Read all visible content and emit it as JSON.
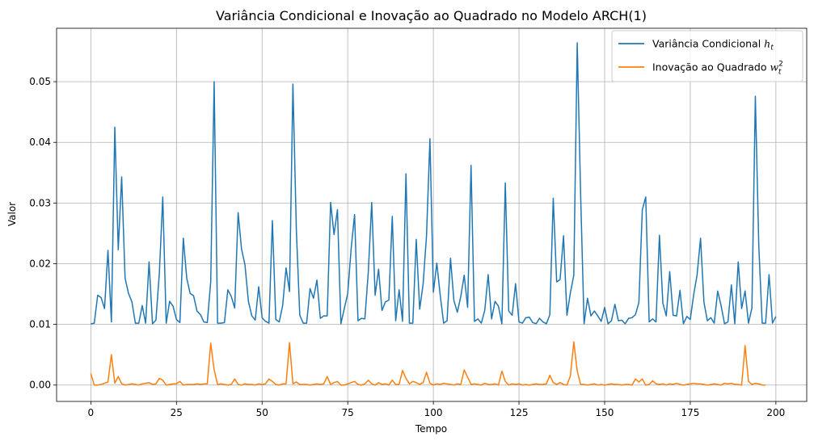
{
  "chart_data": {
    "type": "line",
    "title": "Variância Condicional e Inovação ao Quadrado no Modelo ARCH(1)",
    "xlabel": "Tempo",
    "ylabel": "Valor",
    "xlim": [
      -10,
      209
    ],
    "ylim": [
      -0.0027,
      0.0588
    ],
    "xticks": [
      0,
      25,
      50,
      75,
      100,
      125,
      150,
      175,
      200
    ],
    "xtick_labels": [
      "0",
      "25",
      "50",
      "75",
      "100",
      "125",
      "150",
      "175",
      "200"
    ],
    "yticks": [
      0.0,
      0.01,
      0.02,
      0.03,
      0.04,
      0.05
    ],
    "ytick_labels": [
      "0.00",
      "0.01",
      "0.02",
      "0.03",
      "0.04",
      "0.05"
    ],
    "grid": true,
    "legend_position": "top-right",
    "legend": [
      {
        "series": 0,
        "text": "Variância Condicional ",
        "math": "h",
        "sub": "t"
      },
      {
        "series": 1,
        "text": "Inovação ao Quadrado ",
        "math": "w",
        "sub": "t",
        "sup": "2"
      }
    ],
    "colors": {
      "h": "#1f77b4",
      "w2": "#ff7f0e"
    },
    "series": [
      {
        "name": "Variância Condicional h_t",
        "color": "#1f77b4",
        "values": [
          0.0101,
          0.0102,
          0.0148,
          0.0144,
          0.0126,
          0.0222,
          0.0104,
          0.0425,
          0.0223,
          0.0343,
          0.0176,
          0.0151,
          0.0137,
          0.0102,
          0.0102,
          0.0131,
          0.0102,
          0.0203,
          0.0101,
          0.0107,
          0.0184,
          0.031,
          0.0102,
          0.0138,
          0.013,
          0.0108,
          0.0103,
          0.0242,
          0.0176,
          0.0151,
          0.0147,
          0.0122,
          0.0116,
          0.0104,
          0.0103,
          0.017,
          0.05,
          0.0102,
          0.0102,
          0.0103,
          0.0157,
          0.0146,
          0.0127,
          0.0284,
          0.0224,
          0.0198,
          0.0138,
          0.0114,
          0.0107,
          0.0162,
          0.0111,
          0.0105,
          0.0102,
          0.0271,
          0.0108,
          0.0104,
          0.0131,
          0.0193,
          0.0154,
          0.0496,
          0.0255,
          0.0115,
          0.0102,
          0.0102,
          0.0159,
          0.0143,
          0.0173,
          0.011,
          0.0114,
          0.0114,
          0.0301,
          0.0248,
          0.0289,
          0.0101,
          0.0126,
          0.0151,
          0.0225,
          0.0281,
          0.0106,
          0.011,
          0.0109,
          0.0186,
          0.0301,
          0.0148,
          0.0191,
          0.0123,
          0.0137,
          0.014,
          0.0278,
          0.0106,
          0.0157,
          0.0105,
          0.0348,
          0.0102,
          0.0102,
          0.024,
          0.0125,
          0.0166,
          0.0246,
          0.0406,
          0.0153,
          0.0201,
          0.0148,
          0.0102,
          0.0106,
          0.0209,
          0.0139,
          0.012,
          0.0146,
          0.0181,
          0.0128,
          0.0362,
          0.0105,
          0.0109,
          0.0102,
          0.0123,
          0.0182,
          0.0109,
          0.0138,
          0.013,
          0.0101,
          0.0333,
          0.0122,
          0.0115,
          0.0167,
          0.0104,
          0.0102,
          0.0111,
          0.0112,
          0.0103,
          0.0101,
          0.011,
          0.0104,
          0.0101,
          0.0116,
          0.0308,
          0.017,
          0.0174,
          0.0246,
          0.0115,
          0.0152,
          0.0181,
          0.0564,
          0.0312,
          0.0101,
          0.0143,
          0.0114,
          0.0122,
          0.0114,
          0.0105,
          0.0128,
          0.0101,
          0.0106,
          0.0133,
          0.0106,
          0.0107,
          0.0101,
          0.011,
          0.0111,
          0.0116,
          0.0136,
          0.0289,
          0.031,
          0.0104,
          0.0109,
          0.0104,
          0.0247,
          0.0135,
          0.0114,
          0.0187,
          0.0115,
          0.0114,
          0.0156,
          0.0101,
          0.0113,
          0.0108,
          0.0149,
          0.0182,
          0.0242,
          0.0136,
          0.0106,
          0.0111,
          0.0102,
          0.0155,
          0.0131,
          0.0101,
          0.0104,
          0.0165,
          0.0101,
          0.0203,
          0.0126,
          0.0155,
          0.0102,
          0.0127,
          0.0476,
          0.023,
          0.0102,
          0.0102,
          0.0182,
          0.0102,
          0.0113
        ]
      },
      {
        "name": "Inovação ao Quadrado w_t^2",
        "color": "#ff7f0e",
        "values": [
          0.0019,
          0.0,
          0.0,
          0.0001,
          0.0003,
          0.0005,
          0.005,
          0.0003,
          0.0014,
          0.0002,
          0.0,
          0.0001,
          0.0002,
          0.0001,
          0.0,
          0.0002,
          0.0003,
          0.0004,
          0.0001,
          0.0002,
          0.0011,
          0.0008,
          0.0,
          0.0001,
          0.0002,
          0.0002,
          0.0006,
          0.0,
          0.0001,
          0.0001,
          0.0001,
          0.0002,
          0.0001,
          0.0002,
          0.0002,
          0.0069,
          0.0025,
          0.0001,
          0.0002,
          0.0001,
          0.0,
          0.0001,
          0.001,
          0.0001,
          0.0,
          0.0002,
          0.0001,
          0.0001,
          0.0,
          0.0002,
          0.0001,
          0.0002,
          0.001,
          0.0006,
          0.0001,
          0.0,
          0.0002,
          0.0002,
          0.007,
          0.0002,
          0.0005,
          0.0001,
          0.0001,
          0.0001,
          0.0,
          0.0001,
          0.0002,
          0.0001,
          0.0002,
          0.0014,
          0.0001,
          0.0004,
          0.0006,
          0.0,
          0.0,
          0.0002,
          0.0004,
          0.0006,
          0.0001,
          0.0,
          0.0002,
          0.0008,
          0.0002,
          0.0,
          0.0004,
          0.0001,
          0.0002,
          0.0,
          0.0008,
          0.0001,
          0.0001,
          0.0024,
          0.0011,
          0.0002,
          0.0006,
          0.0004,
          0.0001,
          0.0004,
          0.0021,
          0.0003,
          0.0,
          0.0002,
          0.0001,
          0.0003,
          0.0002,
          0.0001,
          0.0,
          0.0002,
          0.0001,
          0.0025,
          0.0013,
          0.0001,
          0.0002,
          0.0001,
          0.0,
          0.0003,
          0.0001,
          0.0001,
          0.0002,
          0.0,
          0.0023,
          0.0006,
          0.0,
          0.0002,
          0.0001,
          0.0002,
          0.0,
          0.0001,
          0.0,
          0.0001,
          0.0002,
          0.0001,
          0.0001,
          0.0002,
          0.0016,
          0.0004,
          0.0001,
          0.0004,
          0.0001,
          0.0,
          0.0015,
          0.0071,
          0.0023,
          0.0001,
          0.0001,
          0.0,
          0.0001,
          0.0002,
          0.0,
          0.0001,
          0.0,
          0.0001,
          0.0002,
          0.0001,
          0.0001,
          0.0,
          0.0001,
          0.0001,
          0.0,
          0.001,
          0.0005,
          0.001,
          0.0,
          0.0001,
          0.0007,
          0.0002,
          0.0001,
          0.0002,
          0.0,
          0.0002,
          0.0001,
          0.0003,
          0.0001,
          0.0,
          0.0001,
          0.0002,
          0.0003,
          0.0002,
          0.0002,
          0.0001,
          0.0,
          0.0001,
          0.0002,
          0.0001,
          0.0,
          0.0003,
          0.0002,
          0.0003,
          0.0001,
          0.0001,
          0.0,
          0.0065,
          0.0006,
          0.0001,
          0.0003,
          0.0002,
          0.0,
          0.0
        ]
      }
    ]
  }
}
